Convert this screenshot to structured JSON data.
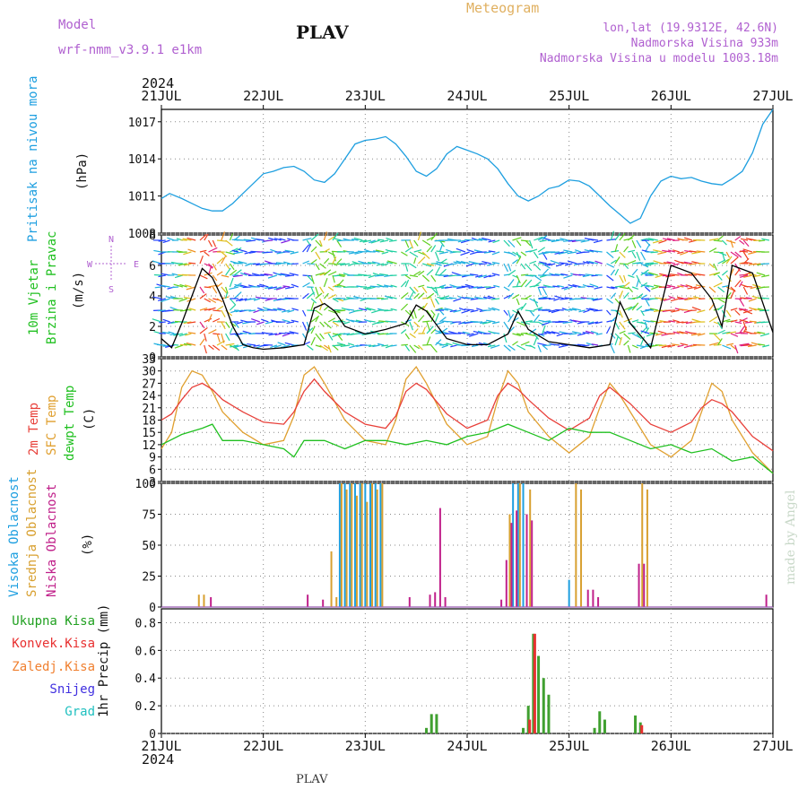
{
  "header": {
    "model_label": "Model",
    "model_name": "wrf-nmm_v3.9.1  e1km",
    "title": "PLAV",
    "subtitle": "Meteogram",
    "lonlat": "lon,lat (19.9312E, 42.6N)",
    "elevation": "Nadmorska Visina 933m",
    "model_elevation": "Nadmorska Visina u modelu 1003.18m",
    "footer_station": "PLAV",
    "watermark": "made by Angel"
  },
  "colors": {
    "pressure": "#1e9fe0",
    "temp2m": "#e8403a",
    "sfc_temp": "#e0a030",
    "dewpt": "#20c020",
    "high_cloud": "#1e9fe0",
    "mid_cloud": "#d8a030",
    "low_cloud": "#c0208a",
    "total_precip": "#40a030",
    "conv_precip": "#e83030",
    "grid": "#888888"
  },
  "time_axis": {
    "year": "2024",
    "day_labels": [
      "21JUL",
      "22JUL",
      "23JUL",
      "24JUL",
      "25JUL",
      "26JUL",
      "27JUL"
    ]
  },
  "chart_data": [
    {
      "type": "line",
      "panel": "pressure",
      "ylabel_1": "Pritisak na nivou mora",
      "ylabel_2": "(hPa)",
      "yticks": [
        "1008",
        "1011",
        "1014",
        "1017"
      ],
      "ylim": [
        1008,
        1018
      ],
      "x_unit": "days since 21JUL 00Z",
      "series": [
        {
          "x": [
            0,
            0.08,
            0.2,
            0.3,
            0.4,
            0.5,
            0.6,
            0.7,
            0.8,
            0.9,
            1.0,
            1.1,
            1.2,
            1.3,
            1.4,
            1.5,
            1.6,
            1.7,
            1.8,
            1.9,
            2.0,
            2.1,
            2.2,
            2.3,
            2.4,
            2.5,
            2.6,
            2.7,
            2.8,
            2.9,
            3.0,
            3.1,
            3.2,
            3.3,
            3.4,
            3.5,
            3.6,
            3.7,
            3.8,
            3.9,
            4.0,
            4.1,
            4.2,
            4.3,
            4.4,
            4.5,
            4.6,
            4.7,
            4.8,
            4.9,
            5.0,
            5.1,
            5.2,
            5.3,
            5.4,
            5.5,
            5.6,
            5.7,
            5.8,
            5.9,
            6.0
          ],
          "values": [
            1010.8,
            1011.2,
            1010.8,
            1010.4,
            1010.0,
            1009.8,
            1009.8,
            1010.4,
            1011.2,
            1012.0,
            1012.8,
            1013.0,
            1013.3,
            1013.4,
            1013.0,
            1012.3,
            1012.1,
            1012.8,
            1014.0,
            1015.2,
            1015.5,
            1015.6,
            1015.8,
            1015.2,
            1014.2,
            1013.0,
            1012.6,
            1013.2,
            1014.4,
            1015.0,
            1014.7,
            1014.4,
            1014.0,
            1013.2,
            1012.0,
            1011.0,
            1010.6,
            1011.0,
            1011.6,
            1011.8,
            1012.3,
            1012.2,
            1011.8,
            1011.0,
            1010.2,
            1009.5,
            1008.8,
            1009.2,
            1011.0,
            1012.2,
            1012.6,
            1012.4,
            1012.5,
            1012.2,
            1012.0,
            1011.9,
            1012.4,
            1013.0,
            1014.5,
            1016.8,
            1018.0
          ]
        }
      ]
    },
    {
      "type": "scatter",
      "panel": "wind",
      "ylabel_1": "10m Vjetar",
      "ylabel_2": "Brzina i Pravac",
      "ylabel_3": "(m/s)",
      "compass": {
        "n": "N",
        "w": "W",
        "e": "E",
        "s": "S"
      },
      "yticks": [
        "0",
        "2",
        "4",
        "6",
        "8"
      ],
      "ylim": [
        0,
        8
      ],
      "series": [
        {
          "name": "wind speed",
          "x": [
            0,
            0.1,
            0.2,
            0.3,
            0.4,
            0.5,
            0.6,
            0.7,
            0.8,
            0.9,
            1.0,
            1.2,
            1.4,
            1.5,
            1.6,
            1.7,
            1.8,
            2.0,
            2.2,
            2.4,
            2.5,
            2.6,
            2.8,
            3.0,
            3.2,
            3.4,
            3.5,
            3.6,
            3.8,
            4.0,
            4.2,
            4.4,
            4.5,
            4.6,
            4.8,
            5.0,
            5.2,
            5.4,
            5.5,
            5.6,
            5.8,
            6.0
          ],
          "values": [
            1.2,
            0.6,
            2.2,
            4.0,
            5.8,
            5.2,
            3.8,
            2.0,
            0.8,
            0.6,
            0.5,
            0.6,
            0.8,
            3.2,
            3.5,
            3.0,
            2.0,
            1.5,
            1.8,
            2.2,
            3.4,
            3.0,
            1.2,
            0.8,
            0.8,
            1.5,
            3.0,
            1.8,
            1.0,
            0.8,
            0.6,
            0.8,
            3.6,
            2.2,
            0.6,
            6.0,
            5.5,
            3.8,
            2.0,
            6.0,
            5.5,
            1.6
          ]
        }
      ]
    },
    {
      "type": "line",
      "panel": "temperature",
      "ylabel_1": "2m Temp",
      "ylabel_2": "SFC Temp",
      "ylabel_3": "dewpt Temp",
      "ylabel_4": "(C)",
      "yticks": [
        "3",
        "6",
        "9",
        "12",
        "15",
        "18",
        "21",
        "24",
        "27",
        "30",
        "33"
      ],
      "ylim": [
        3,
        33
      ],
      "series": [
        {
          "name": "2m Temp",
          "x": [
            0,
            0.1,
            0.2,
            0.3,
            0.4,
            0.5,
            0.6,
            0.8,
            1.0,
            1.2,
            1.3,
            1.4,
            1.5,
            1.6,
            1.8,
            2.0,
            2.2,
            2.3,
            2.4,
            2.5,
            2.6,
            2.8,
            3.0,
            3.2,
            3.3,
            3.4,
            3.5,
            3.6,
            3.8,
            4.0,
            4.2,
            4.3,
            4.4,
            4.5,
            4.6,
            4.8,
            5.0,
            5.2,
            5.3,
            5.4,
            5.5,
            5.6,
            5.8,
            6.0
          ],
          "values": [
            18,
            19.5,
            23,
            26,
            27,
            25.5,
            23,
            20,
            17.5,
            17,
            20,
            25,
            28,
            25,
            20,
            17,
            16,
            19,
            25,
            27,
            25.5,
            19.5,
            16,
            18,
            24,
            27,
            25.5,
            23,
            18.5,
            15.5,
            18.5,
            24,
            26,
            24,
            22,
            17,
            15,
            17.5,
            21,
            23,
            22,
            20,
            14,
            10.5
          ]
        },
        {
          "name": "SFC Temp",
          "x": [
            0,
            0.1,
            0.2,
            0.3,
            0.4,
            0.5,
            0.6,
            0.8,
            1.0,
            1.2,
            1.3,
            1.4,
            1.5,
            1.6,
            1.8,
            2.0,
            2.2,
            2.3,
            2.4,
            2.5,
            2.6,
            2.8,
            3.0,
            3.2,
            3.3,
            3.4,
            3.5,
            3.6,
            3.8,
            4.0,
            4.2,
            4.3,
            4.4,
            4.5,
            4.6,
            4.8,
            5.0,
            5.2,
            5.3,
            5.4,
            5.5,
            5.6,
            5.8,
            6.0
          ],
          "values": [
            11,
            15,
            26,
            30,
            29,
            25,
            20,
            15,
            12,
            13,
            19,
            29,
            31,
            27,
            18,
            13,
            12,
            18,
            28,
            31,
            27,
            17,
            12,
            14,
            23,
            30,
            27,
            20,
            14,
            10,
            14,
            21,
            27,
            24,
            20,
            12,
            9,
            13,
            20,
            27,
            25,
            18,
            10,
            5
          ]
        },
        {
          "name": "dewpt Temp",
          "x": [
            0,
            0.2,
            0.4,
            0.5,
            0.6,
            0.8,
            1.0,
            1.2,
            1.3,
            1.4,
            1.6,
            1.8,
            2.0,
            2.2,
            2.4,
            2.6,
            2.8,
            3.0,
            3.2,
            3.4,
            3.6,
            3.8,
            4.0,
            4.2,
            4.4,
            4.6,
            4.8,
            5.0,
            5.2,
            5.4,
            5.6,
            5.8,
            6.0
          ],
          "values": [
            12,
            14.5,
            16,
            17,
            13,
            13,
            12,
            11,
            9,
            13,
            13,
            11,
            13,
            13,
            12,
            13,
            12,
            14,
            15,
            17,
            15,
            13,
            16,
            15,
            15,
            13,
            11,
            12,
            10,
            11,
            8,
            9,
            5
          ]
        }
      ]
    },
    {
      "type": "bar",
      "panel": "clouds",
      "ylabel_1": "Visoka Oblacnost",
      "ylabel_2": "Srednja Oblacnost",
      "ylabel_3": "Niska Oblacnost",
      "ylabel_4": "(%)",
      "yticks": [
        "0",
        "25",
        "50",
        "75",
        "100"
      ],
      "ylim": [
        0,
        100
      ],
      "series": [
        {
          "name": "Visoka Oblacnost",
          "x": [
            1.75,
            1.8,
            1.85,
            1.9,
            1.95,
            2.0,
            2.05,
            2.1,
            2.15,
            3.45,
            3.5,
            3.55,
            4.0
          ],
          "values": [
            100,
            100,
            100,
            100,
            100,
            100,
            100,
            100,
            100,
            100,
            100,
            100,
            22
          ]
        },
        {
          "name": "Srednja Oblacnost",
          "x": [
            0.35,
            0.4,
            1.65,
            1.7,
            1.75,
            1.8,
            1.85,
            1.9,
            1.95,
            2.0,
            2.05,
            2.1,
            2.15,
            3.4,
            3.5,
            3.6,
            4.05,
            4.1,
            4.7,
            4.75
          ],
          "values": [
            10,
            10,
            45,
            8,
            100,
            95,
            100,
            90,
            100,
            85,
            100,
            95,
            100,
            75,
            100,
            95,
            100,
            95,
            100,
            95
          ]
        },
        {
          "name": "Niska Oblacnost",
          "x": [
            0.45,
            1.4,
            1.55,
            2.4,
            2.6,
            2.65,
            2.7,
            2.75,
            3.3,
            3.35,
            3.4,
            3.45,
            3.55,
            3.6,
            4.15,
            4.2,
            4.25,
            4.65,
            4.7,
            5.9
          ],
          "values": [
            8,
            10,
            6,
            8,
            10,
            12,
            80,
            8,
            6,
            38,
            68,
            78,
            75,
            70,
            14,
            14,
            8,
            35,
            35,
            10
          ]
        }
      ]
    },
    {
      "type": "bar",
      "panel": "precip",
      "ylabel_1": "1hr Precip (mm)",
      "legend": [
        "Ukupna Kisa",
        "Konvek.Kisa",
        "Zaledj.Kisa",
        "Snijeg",
        "Grad"
      ],
      "yticks": [
        "0",
        "0.2",
        "0.4",
        "0.6",
        "0.8"
      ],
      "ylim": [
        0,
        0.9
      ],
      "series": [
        {
          "name": "Ukupna Kisa",
          "x": [
            2.6,
            2.65,
            2.7,
            3.55,
            3.6,
            3.65,
            3.7,
            3.75,
            3.8,
            4.25,
            4.3,
            4.35,
            4.65,
            4.7,
            4.75
          ],
          "values": [
            0.04,
            0.14,
            0.14,
            0.04,
            0.2,
            0.72,
            0.56,
            0.4,
            0.28,
            0.04,
            0.16,
            0.1,
            0.13,
            0.08,
            0.0
          ]
        },
        {
          "name": "Konvek.Kisa",
          "x": [
            3.6,
            3.65,
            4.7
          ],
          "values": [
            0.1,
            0.72,
            0.06
          ]
        }
      ]
    }
  ]
}
